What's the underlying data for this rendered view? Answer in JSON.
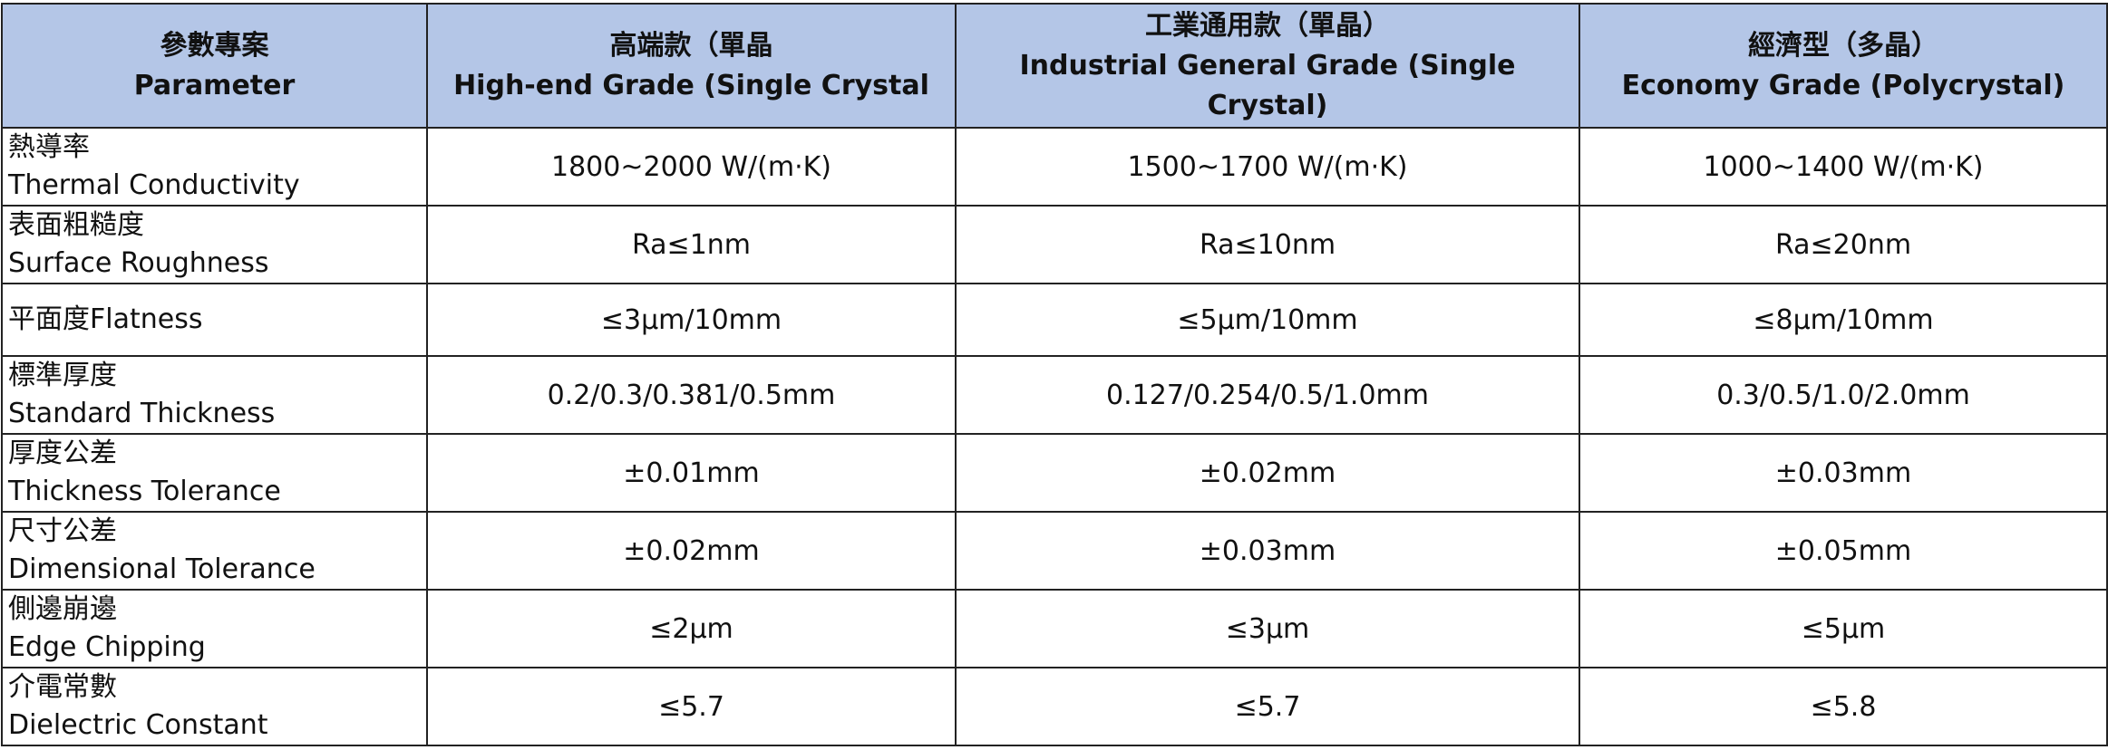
{
  "table": {
    "header": [
      [
        "參數專案",
        "Parameter"
      ],
      [
        "高端款（單晶",
        "High-end Grade (Single Crystal"
      ],
      [
        "工業通用款（單晶）",
        "Industrial General Grade (Single Crystal)"
      ],
      [
        "經濟型（多晶）",
        "Economy Grade (Polycrystal)"
      ]
    ],
    "rows": [
      [
        [
          "熱導率",
          "Thermal Conductivity"
        ],
        "1800~2000 W/(m·K)",
        "1500~1700 W/(m·K)",
        "1000~1400 W/(m·K)"
      ],
      [
        [
          "表面粗糙度",
          "Surface Roughness"
        ],
        "Ra≤1nm",
        "Ra≤10nm",
        "Ra≤20nm"
      ],
      [
        [
          "平面度Flatness"
        ],
        "≤3μm/10mm",
        "≤5μm/10mm",
        "≤8μm/10mm"
      ],
      [
        [
          "標準厚度",
          "Standard Thickness"
        ],
        "0.2/0.3/0.381/0.5mm",
        "0.127/0.254/0.5/1.0mm",
        "0.3/0.5/1.0/2.0mm"
      ],
      [
        [
          "厚度公差",
          "Thickness Tolerance"
        ],
        "±0.01mm",
        "±0.02mm",
        "±0.03mm"
      ],
      [
        [
          "尺寸公差",
          "Dimensional Tolerance"
        ],
        "±0.02mm",
        "±0.03mm",
        "±0.05mm"
      ],
      [
        [
          "側邊崩邊",
          "Edge Chipping"
        ],
        "≤2μm",
        "≤3μm",
        "≤5μm"
      ],
      [
        [
          "介電常數",
          "Dielectric Constant"
        ],
        "≤5.7",
        "≤5.7",
        "≤5.8"
      ]
    ]
  }
}
